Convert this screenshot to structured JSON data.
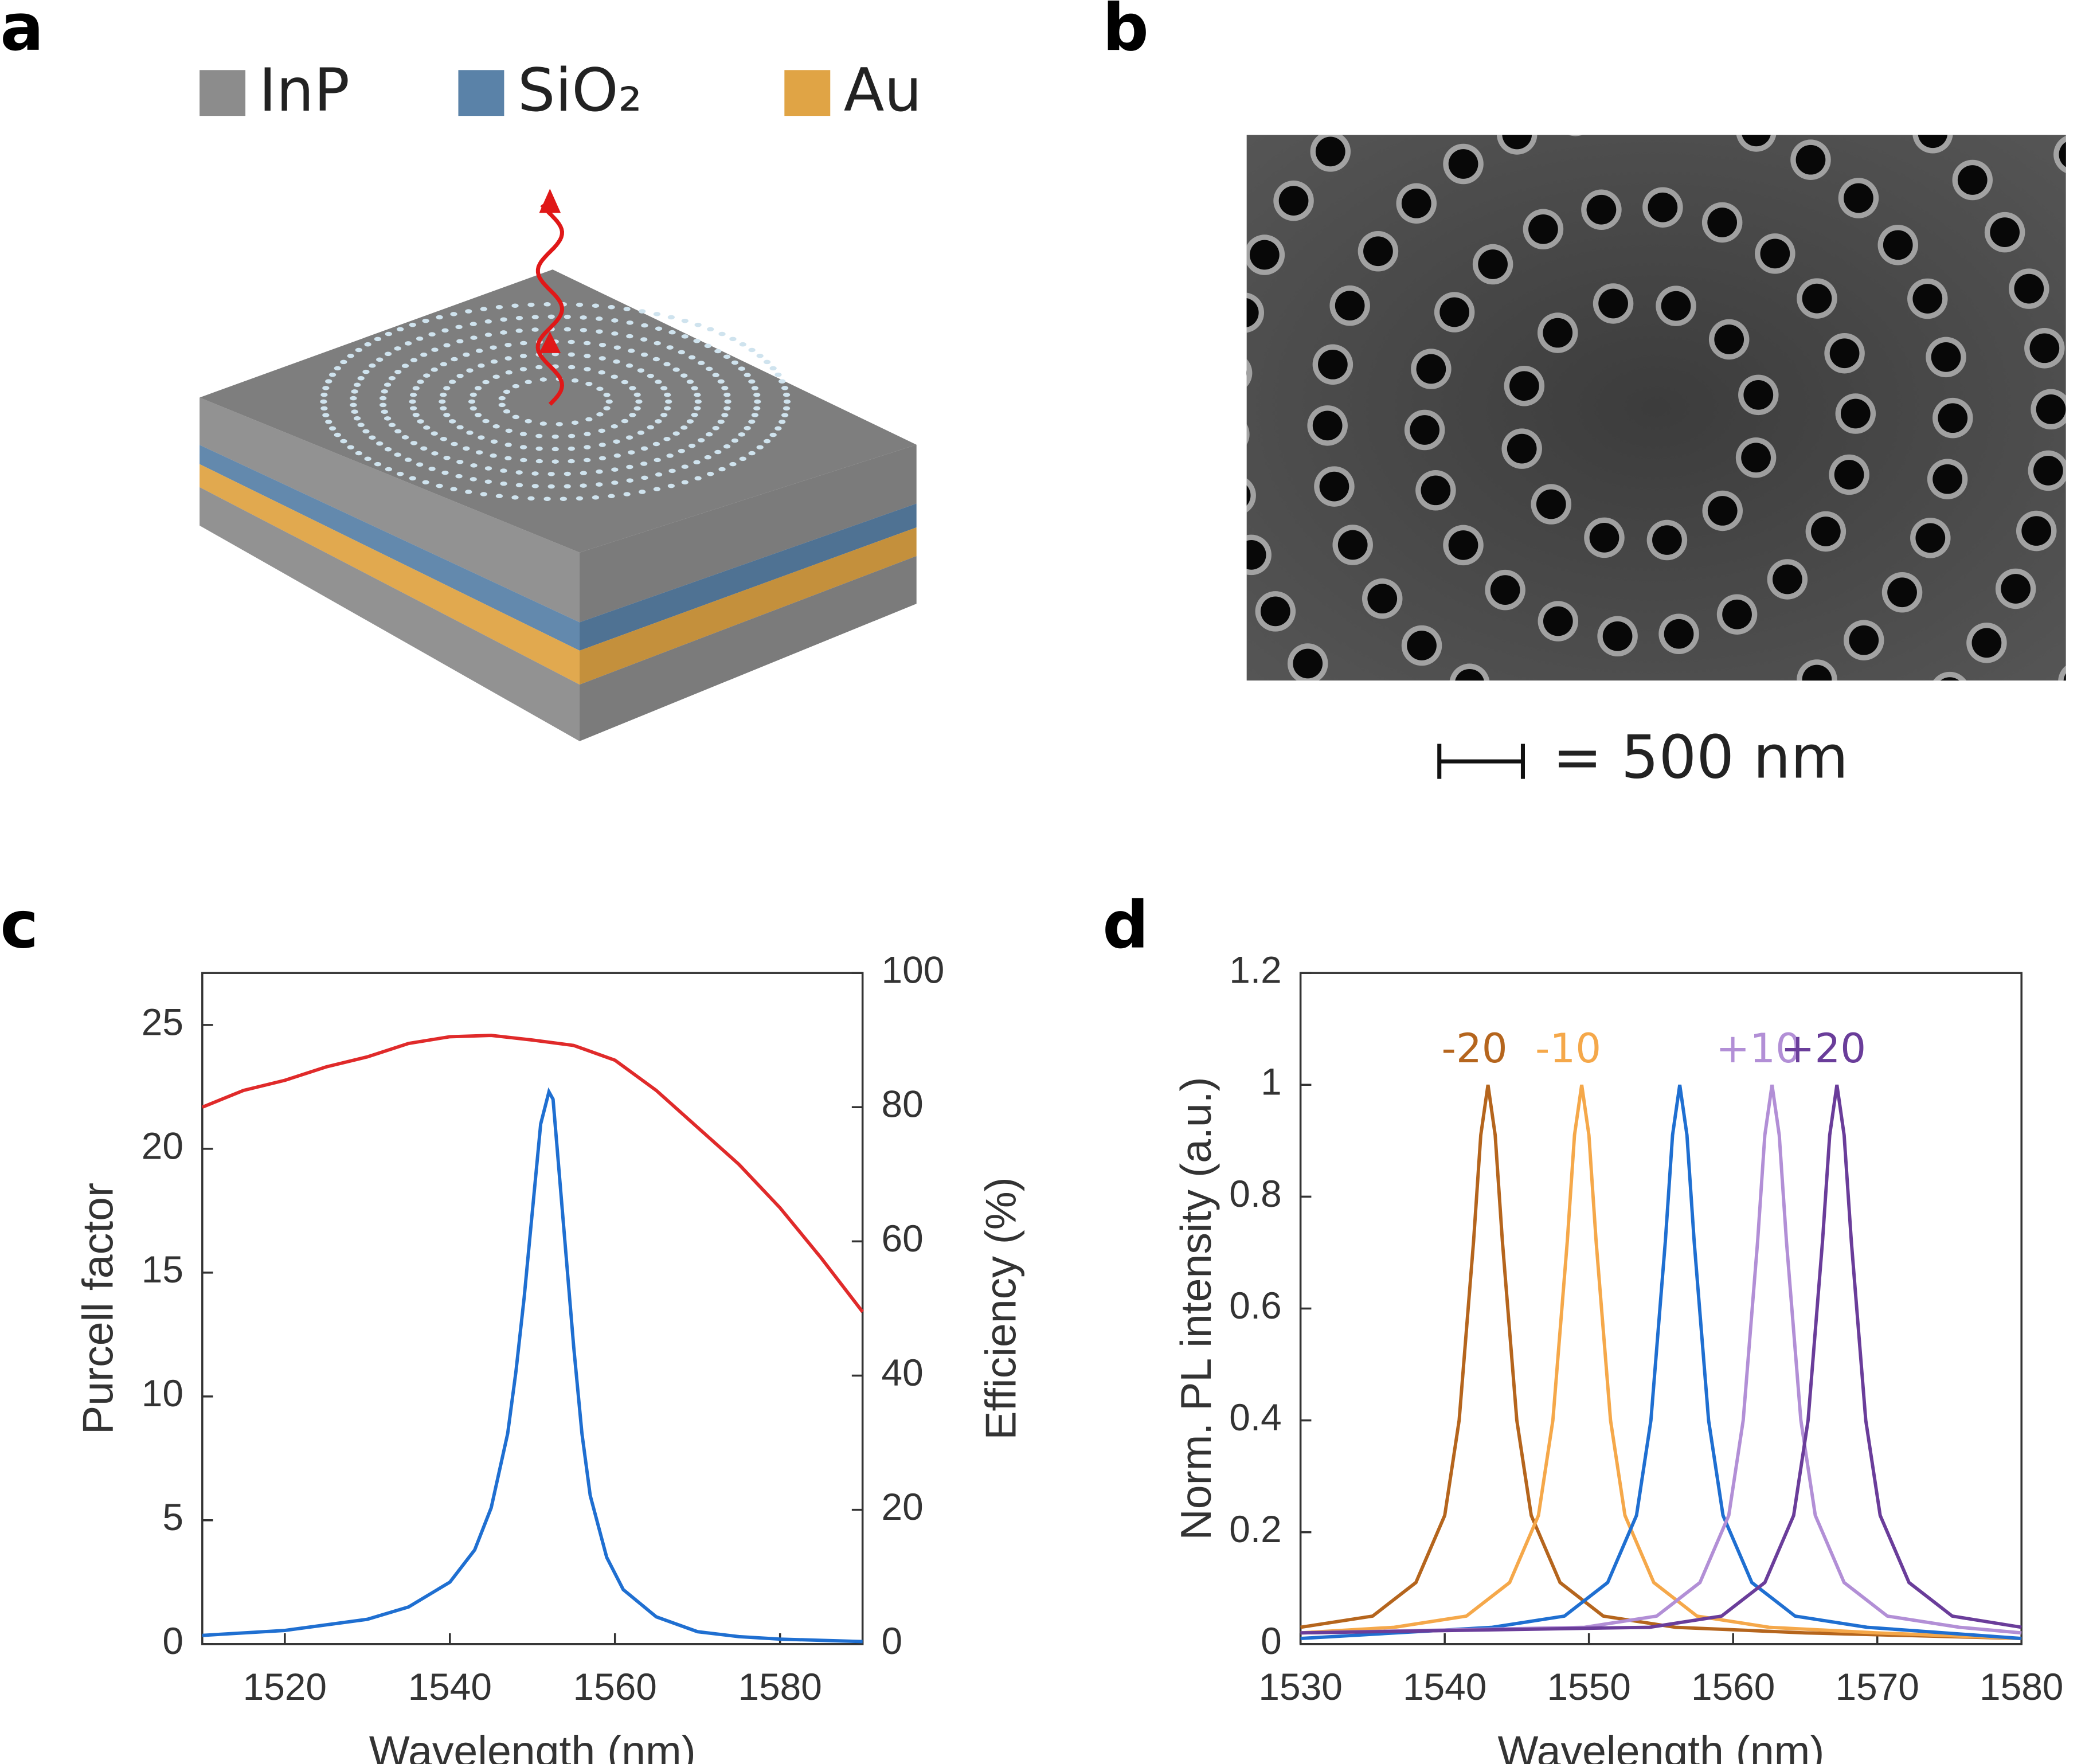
{
  "panels": {
    "a": {
      "label": "a",
      "legend": [
        {
          "name": "InP",
          "color": "#8c8c8c"
        },
        {
          "name": "SiO₂",
          "color": "#5a82a8"
        },
        {
          "name": "Au",
          "color": "#e0a445"
        }
      ]
    },
    "b": {
      "label": "b",
      "scale_bar_label": "= 500 nm"
    },
    "c": {
      "label": "c"
    },
    "d": {
      "label": "d"
    }
  },
  "chart_data": [
    {
      "type": "line",
      "xlabel": "Wavelength (nm)",
      "ylabel": "Purcell factor",
      "y2label": "Efficiency (%)",
      "xlim": [
        1510,
        1590
      ],
      "xticks": [
        1520,
        1540,
        1560,
        1580
      ],
      "ylim": [
        0,
        27.1
      ],
      "yticks": [
        0,
        5,
        10,
        15,
        20,
        25
      ],
      "y2lim": [
        0,
        100
      ],
      "y2ticks": [
        0,
        20,
        40,
        60,
        80,
        100
      ],
      "series": [
        {
          "color": "#1f6fd1",
          "axis": "y",
          "x": [
            1510,
            1520,
            1530,
            1535,
            1540,
            1543,
            1545,
            1547,
            1548,
            1549,
            1550,
            1551,
            1552,
            1552.5,
            1553,
            1554,
            1555,
            1556,
            1557,
            1559,
            1561,
            1565,
            1570,
            1575,
            1580,
            1585,
            1590
          ],
          "values": [
            0.35,
            0.55,
            1.0,
            1.5,
            2.5,
            3.8,
            5.5,
            8.5,
            11,
            14,
            17.5,
            21,
            22.3,
            22,
            20,
            16,
            12,
            8.5,
            6,
            3.5,
            2.2,
            1.1,
            0.5,
            0.3,
            0.2,
            0.15,
            0.1
          ]
        },
        {
          "color": "#e02a2a",
          "axis": "y2",
          "x": [
            1510,
            1515,
            1520,
            1525,
            1530,
            1535,
            1540,
            1545,
            1550,
            1555,
            1560,
            1565,
            1570,
            1575,
            1580,
            1585,
            1590
          ],
          "values": [
            80,
            82.5,
            84,
            86,
            87.5,
            89.5,
            90.5,
            90.7,
            90,
            89.2,
            87,
            82.5,
            77,
            71.5,
            65,
            57.5,
            49.5
          ]
        }
      ]
    },
    {
      "type": "line",
      "xlabel": "Wavelength (nm)",
      "ylabel": "Norm. PL intensity (a.u.)",
      "xlim": [
        1530,
        1580
      ],
      "xticks": [
        1530,
        1540,
        1550,
        1560,
        1570,
        1580
      ],
      "ylim": [
        0,
        1.2
      ],
      "yticks": [
        0,
        0.2,
        0.4,
        0.6,
        0.8,
        1,
        1.2
      ],
      "series": [
        {
          "name": "-20",
          "color": "#b5651d",
          "x": [
            1530,
            1535,
            1538,
            1540,
            1541,
            1542,
            1542.5,
            1543,
            1543.5,
            1544,
            1545,
            1546,
            1548,
            1551,
            1556,
            1565,
            1580
          ],
          "values": [
            0.03,
            0.05,
            0.11,
            0.23,
            0.4,
            0.72,
            0.91,
            1,
            0.91,
            0.72,
            0.4,
            0.23,
            0.11,
            0.05,
            0.03,
            0.02,
            0.01
          ]
        },
        {
          "name": "-10",
          "color": "#f5a84a",
          "x": [
            1530,
            1536.5,
            1541.5,
            1544.5,
            1546.5,
            1547.5,
            1548.5,
            1549,
            1549.5,
            1550,
            1550.5,
            1551.5,
            1552.5,
            1554.5,
            1557.5,
            1562.5,
            1570,
            1580
          ],
          "values": [
            0.02,
            0.03,
            0.05,
            0.11,
            0.23,
            0.4,
            0.72,
            0.91,
            1,
            0.91,
            0.72,
            0.4,
            0.23,
            0.11,
            0.05,
            0.03,
            0.02,
            0.01
          ]
        },
        {
          "color": "#1f6fd1",
          "x": [
            1530,
            1543.3,
            1548.3,
            1551.3,
            1553.3,
            1554.3,
            1555.3,
            1555.8,
            1556.3,
            1556.8,
            1557.3,
            1558.3,
            1559.3,
            1561.3,
            1564.3,
            1569.3,
            1580
          ],
          "values": [
            0.01,
            0.03,
            0.05,
            0.11,
            0.23,
            0.4,
            0.72,
            0.91,
            1,
            0.91,
            0.72,
            0.4,
            0.23,
            0.11,
            0.05,
            0.03,
            0.01
          ]
        },
        {
          "name": "+10",
          "color": "#b28fd6",
          "x": [
            1530,
            1549.7,
            1554.7,
            1557.7,
            1559.7,
            1560.7,
            1561.7,
            1562.2,
            1562.7,
            1563.2,
            1563.7,
            1564.7,
            1565.7,
            1567.7,
            1570.7,
            1575.7,
            1580
          ],
          "values": [
            0.02,
            0.03,
            0.05,
            0.11,
            0.23,
            0.4,
            0.72,
            0.91,
            1,
            0.91,
            0.72,
            0.4,
            0.23,
            0.11,
            0.05,
            0.03,
            0.02
          ]
        },
        {
          "name": "+20",
          "color": "#6a3d9a",
          "x": [
            1530,
            1554.2,
            1559.2,
            1562.2,
            1564.2,
            1565.2,
            1566.2,
            1566.7,
            1567.2,
            1567.7,
            1568.2,
            1569.2,
            1570.2,
            1572.2,
            1575.2,
            1580
          ],
          "values": [
            0.02,
            0.03,
            0.05,
            0.11,
            0.23,
            0.4,
            0.72,
            0.91,
            1,
            0.91,
            0.72,
            0.4,
            0.23,
            0.11,
            0.05,
            0.03
          ]
        }
      ]
    }
  ]
}
